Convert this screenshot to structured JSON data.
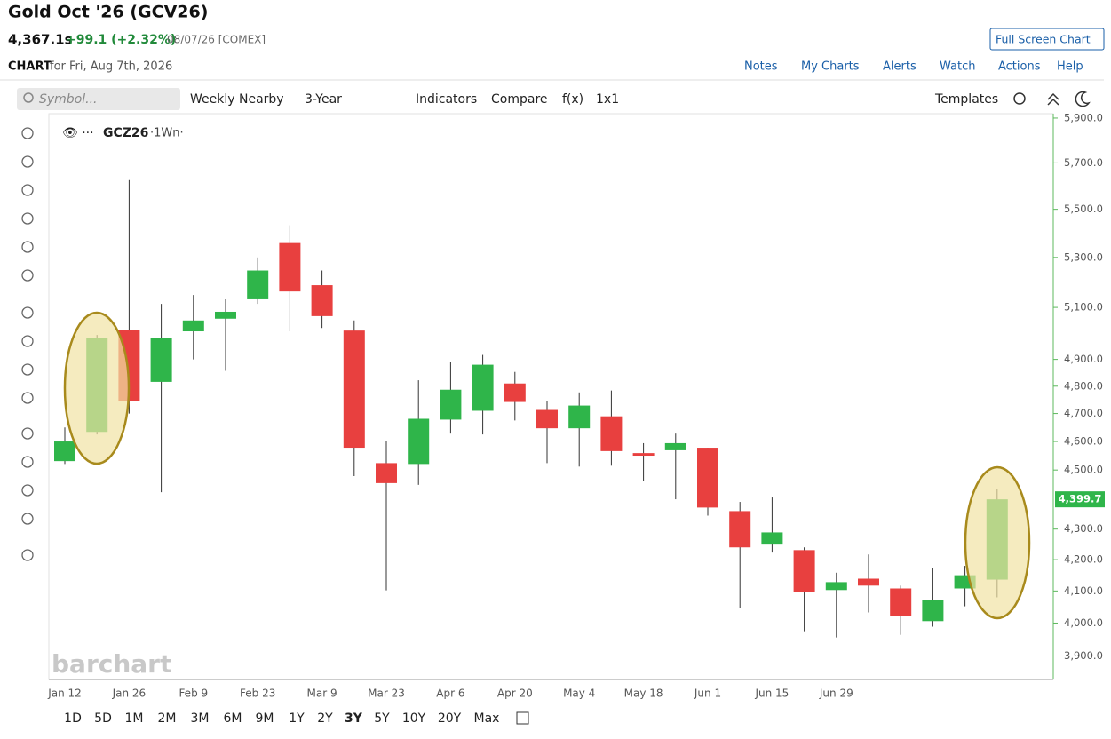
{
  "header": {
    "title": "Gold Oct '26 (GCV26)",
    "price": "4,367.1s",
    "change": "+99.1 (+2.32%)",
    "date": "08/07/26 [COMEX]",
    "full_screen": "Full Screen Chart",
    "section": "CHART",
    "chart_date": "for Fri, Aug 7th, 2026",
    "nav": [
      "Notes",
      "My Charts",
      "Alerts",
      "Watch",
      "Actions",
      "Help"
    ]
  },
  "toolbar": {
    "symbol_placeholder": "Symbol...",
    "items": [
      "Weekly Nearby",
      "3-Year",
      "Indicators",
      "Compare",
      "f(x)",
      "1x1"
    ],
    "templates": "Templates"
  },
  "ranges": [
    "1D",
    "5D",
    "1M",
    "2M",
    "3M",
    "6M",
    "9M",
    "1Y",
    "2Y",
    "3Y",
    "5Y",
    "10Y",
    "20Y",
    "Max"
  ],
  "selected_range_index": 9,
  "watermark": "barchart",
  "chart_data": {
    "type": "candlestick",
    "legend": "GCZ26",
    "legend_interval": "·1Wn·",
    "categories": [
      "Jan 12",
      null,
      "Jan 26",
      null,
      "Feb 9",
      null,
      "Feb 23",
      null,
      "Mar 9",
      null,
      "Mar 23",
      null,
      "Apr 6",
      null,
      "Apr 20",
      null,
      "May 4",
      null,
      "May 18",
      null,
      "Jun 1",
      null,
      "Jun 15",
      null,
      "Jun 29",
      null,
      null,
      null,
      null,
      null
    ],
    "open": [
      4531,
      4634,
      5013,
      4816,
      5007,
      5056,
      5132,
      5359,
      5188,
      5010,
      4524,
      4521,
      4678,
      4710,
      4810,
      4713,
      4647,
      4690,
      4559,
      4569,
      4578,
      4360,
      4249,
      4231,
      4103,
      4139,
      4108,
      4006,
      4108,
      4136
    ],
    "high": [
      4650,
      4993,
      5625,
      5114,
      5149,
      5132,
      5300,
      5433,
      5247,
      5049,
      4603,
      4822,
      4890,
      4917,
      4853,
      4745,
      4777,
      4784,
      4594,
      4628,
      4578,
      4391,
      4406,
      4240,
      4158,
      4217,
      4117,
      4172,
      4180,
      4435
    ],
    "low": [
      4521,
      4625,
      4700,
      4424,
      4900,
      4857,
      5114,
      5007,
      5020,
      4479,
      4102,
      4449,
      4628,
      4625,
      4675,
      4524,
      4512,
      4515,
      4461,
      4400,
      4345,
      4047,
      4223,
      3975,
      3956,
      4033,
      3964,
      3989,
      4052,
      4080
    ],
    "close": [
      4600,
      4983,
      4745,
      4983,
      5049,
      5083,
      5247,
      5163,
      5066,
      4578,
      4455,
      4681,
      4787,
      4880,
      4742,
      4647,
      4729,
      4566,
      4550,
      4594,
      4372,
      4240,
      4289,
      4097,
      4128,
      4117,
      4022,
      4072,
      4150,
      4399.7
    ],
    "up_color": "#2fb54a",
    "down_color": "#e8403f",
    "ylim": [
      3830,
      5920
    ],
    "log_scale": true,
    "grid": false,
    "yticks": [
      {
        "value": 3900,
        "label": "3,900.0"
      },
      {
        "value": 4000,
        "label": "4,000.0"
      },
      {
        "value": 4100,
        "label": "4,100.0"
      },
      {
        "value": 4200,
        "label": "4,200.0"
      },
      {
        "value": 4300,
        "label": "4,300.0"
      },
      {
        "value": 4500,
        "label": "4,500.0"
      },
      {
        "value": 4600,
        "label": "4,600.0"
      },
      {
        "value": 4700,
        "label": "4,700.0"
      },
      {
        "value": 4800,
        "label": "4,800.0"
      },
      {
        "value": 4900,
        "label": "4,900.0"
      },
      {
        "value": 5100,
        "label": "5,100.0"
      },
      {
        "value": 5300,
        "label": "5,300.0"
      },
      {
        "value": 5500,
        "label": "5,500.0"
      },
      {
        "value": 5700,
        "label": "5,700.0"
      },
      {
        "value": 5900,
        "label": "5,900.0"
      }
    ],
    "last_price": {
      "value": 4399.7,
      "label": "4,399.7"
    }
  }
}
